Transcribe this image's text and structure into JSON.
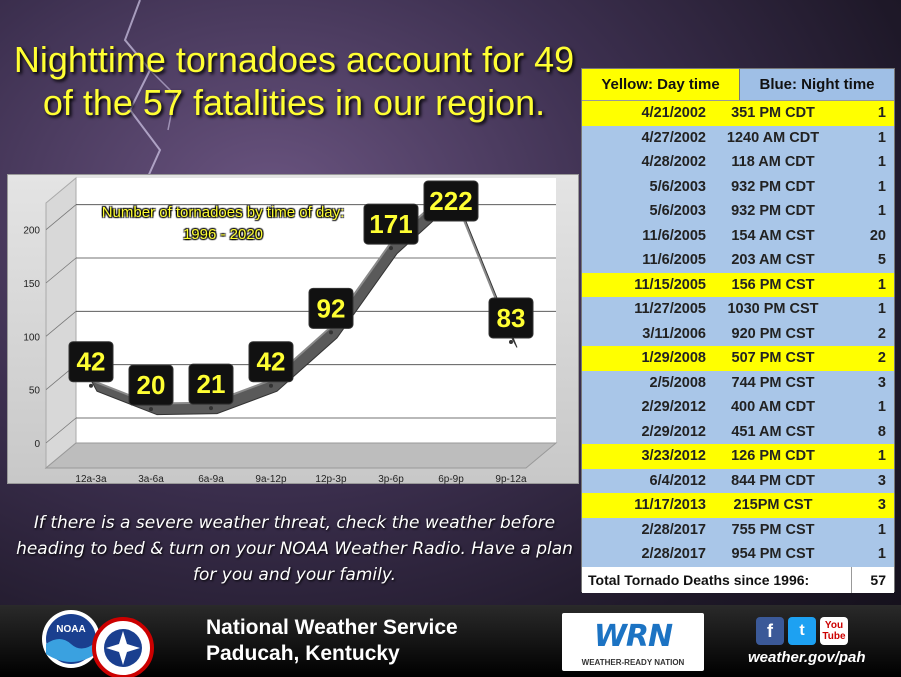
{
  "headline": "Nighttime tornadoes account for 49 of the 57 fatalities in our region.",
  "chart_data": {
    "type": "line",
    "title": "Number of tornadoes by time of day:",
    "subtitle": "1996 - 2020",
    "categories": [
      "12a-3a",
      "3a-6a",
      "6a-9a",
      "9a-12p",
      "12p-3p",
      "3p-6p",
      "6p-9p",
      "9p-12a"
    ],
    "values": [
      42,
      20,
      21,
      42,
      92,
      171,
      222,
      83
    ],
    "ylim": [
      0,
      225
    ],
    "yticks": [
      0,
      50,
      100,
      150,
      200
    ],
    "grid": true,
    "line_color": "#555555",
    "label_color": "#ffff33"
  },
  "threat_message": "If there is a severe weather threat, check the weather before heading to bed & turn on your NOAA Weather Radio. Have a plan for you and your family.",
  "table": {
    "legend_day": "Yellow: Day time",
    "legend_night": "Blue: Night time",
    "day_color": "#ffff00",
    "night_color": "#a9c6e8",
    "rows": [
      {
        "date": "4/21/2002",
        "time": "351 PM CDT",
        "deaths": "1",
        "period": "day"
      },
      {
        "date": "4/27/2002",
        "time": "1240 AM CDT",
        "deaths": "1",
        "period": "night"
      },
      {
        "date": "4/28/2002",
        "time": "118 AM CDT",
        "deaths": "1",
        "period": "night"
      },
      {
        "date": "5/6/2003",
        "time": "932 PM CDT",
        "deaths": "1",
        "period": "night"
      },
      {
        "date": "5/6/2003",
        "time": "932 PM CDT",
        "deaths": "1",
        "period": "night"
      },
      {
        "date": "11/6/2005",
        "time": "154 AM CST",
        "deaths": "20",
        "period": "night"
      },
      {
        "date": "11/6/2005",
        "time": "203 AM CST",
        "deaths": "5",
        "period": "night"
      },
      {
        "date": "11/15/2005",
        "time": "156 PM CST",
        "deaths": "1",
        "period": "day"
      },
      {
        "date": "11/27/2005",
        "time": "1030 PM CST",
        "deaths": "1",
        "period": "night"
      },
      {
        "date": "3/11/2006",
        "time": "920 PM CST",
        "deaths": "2",
        "period": "night"
      },
      {
        "date": "1/29/2008",
        "time": "507 PM CST",
        "deaths": "2",
        "period": "day"
      },
      {
        "date": "2/5/2008",
        "time": "744 PM CST",
        "deaths": "3",
        "period": "night"
      },
      {
        "date": "2/29/2012",
        "time": "400 AM CDT",
        "deaths": "1",
        "period": "night"
      },
      {
        "date": "2/29/2012",
        "time": "451 AM CST",
        "deaths": "8",
        "period": "night"
      },
      {
        "date": "3/23/2012",
        "time": "126 PM CDT",
        "deaths": "1",
        "period": "day"
      },
      {
        "date": "6/4/2012",
        "time": "844 PM CDT",
        "deaths": "3",
        "period": "night"
      },
      {
        "date": "11/17/2013",
        "time": "215PM CST",
        "deaths": "3",
        "period": "day"
      },
      {
        "date": "2/28/2017",
        "time": "755 PM CST",
        "deaths": "1",
        "period": "night"
      },
      {
        "date": "2/28/2017",
        "time": "954 PM CST",
        "deaths": "1",
        "period": "night"
      }
    ],
    "total_label": "Total Tornado Deaths since 1996:",
    "total_value": "57"
  },
  "footer": {
    "office_line1": "National Weather Service",
    "office_line2": "Paducah, Kentucky",
    "noaa_logo_text": "NOAA",
    "nws_logo_text": "NATIONAL WEATHER SERVICE",
    "wrn_text": "WRN",
    "wrn_subtitle": "WEATHER-READY NATION",
    "facebook_icon": "f",
    "twitter_icon": "t",
    "youtube_icon_top": "You",
    "youtube_icon_bottom": "Tube",
    "website": "weather.gov/pah"
  }
}
